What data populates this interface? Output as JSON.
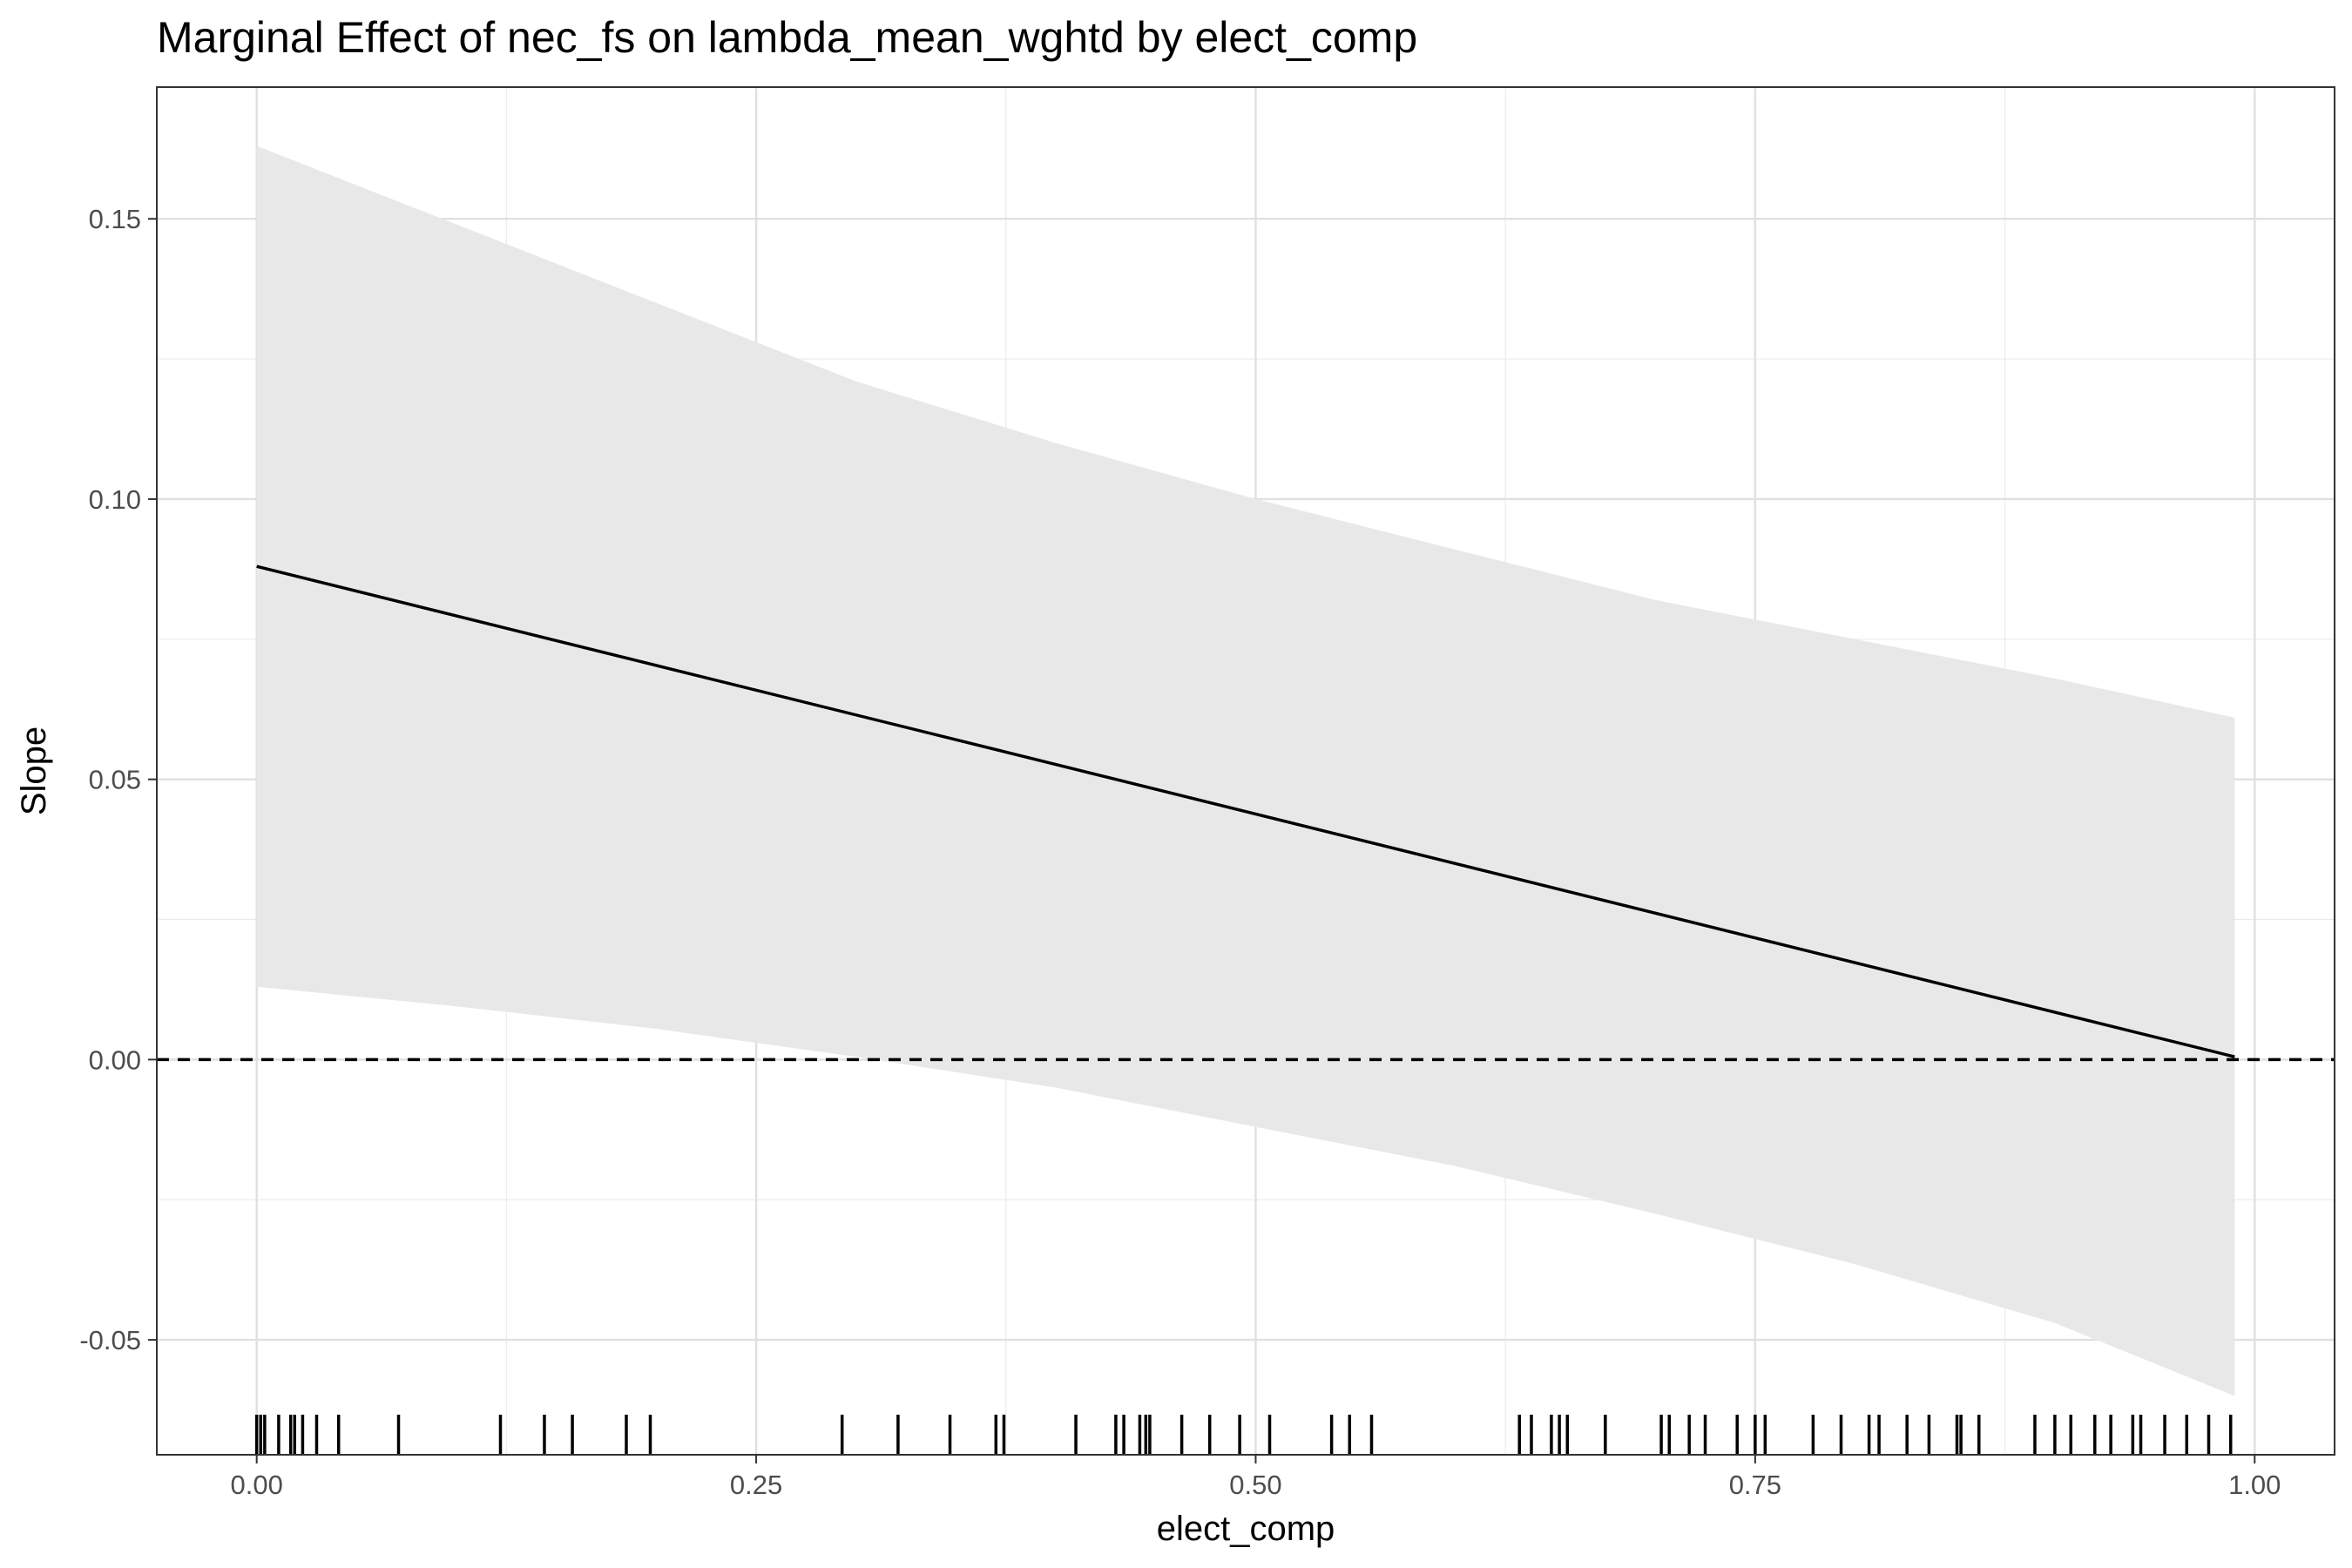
{
  "chart_data": {
    "type": "line",
    "title": "Marginal Effect of nec_fs on lambda_mean_wghtd by elect_comp",
    "xlabel": "elect_comp",
    "ylabel": "Slope",
    "xlim": [
      -0.05,
      1.04
    ],
    "ylim": [
      -0.0705,
      0.1735
    ],
    "x_ticks": [
      0.0,
      0.25,
      0.5,
      0.75,
      1.0
    ],
    "x_tick_labels": [
      "0.00",
      "0.25",
      "0.50",
      "0.75",
      "1.00"
    ],
    "y_ticks": [
      -0.05,
      0.0,
      0.05,
      0.1,
      0.15
    ],
    "y_tick_labels": [
      "-0.05",
      "0.00",
      "0.05",
      "0.10",
      "0.15"
    ],
    "grid": true,
    "series": [
      {
        "kind": "estimate-line",
        "x": [
          0.0,
          0.99
        ],
        "y": [
          0.088,
          0.0005
        ]
      }
    ],
    "confidence_band": {
      "x": [
        0.0,
        0.1,
        0.2,
        0.25,
        0.3,
        0.4,
        0.5,
        0.6,
        0.7,
        0.8,
        0.9,
        0.99
      ],
      "lower": [
        0.013,
        0.0095,
        0.0055,
        0.003,
        0.0005,
        -0.005,
        -0.012,
        -0.019,
        -0.0275,
        -0.0365,
        -0.047,
        -0.06
      ],
      "upper": [
        0.163,
        0.149,
        0.135,
        0.128,
        0.121,
        0.11,
        0.1,
        0.091,
        0.082,
        0.075,
        0.068,
        0.061
      ]
    },
    "reference_line": {
      "y": 0.0,
      "style": "dashed"
    },
    "rug": [
      0.0,
      0.002,
      0.004,
      0.011,
      0.017,
      0.019,
      0.023,
      0.03,
      0.041,
      0.071,
      0.122,
      0.144,
      0.158,
      0.185,
      0.197,
      0.293,
      0.321,
      0.347,
      0.37,
      0.374,
      0.41,
      0.43,
      0.434,
      0.442,
      0.445,
      0.447,
      0.463,
      0.477,
      0.492,
      0.507,
      0.538,
      0.547,
      0.558,
      0.632,
      0.638,
      0.648,
      0.652,
      0.656,
      0.675,
      0.703,
      0.707,
      0.717,
      0.725,
      0.741,
      0.75,
      0.755,
      0.779,
      0.793,
      0.807,
      0.812,
      0.826,
      0.837,
      0.851,
      0.853,
      0.862,
      0.89,
      0.9,
      0.908,
      0.92,
      0.928,
      0.939,
      0.943,
      0.955,
      0.966,
      0.977,
      0.988
    ]
  }
}
